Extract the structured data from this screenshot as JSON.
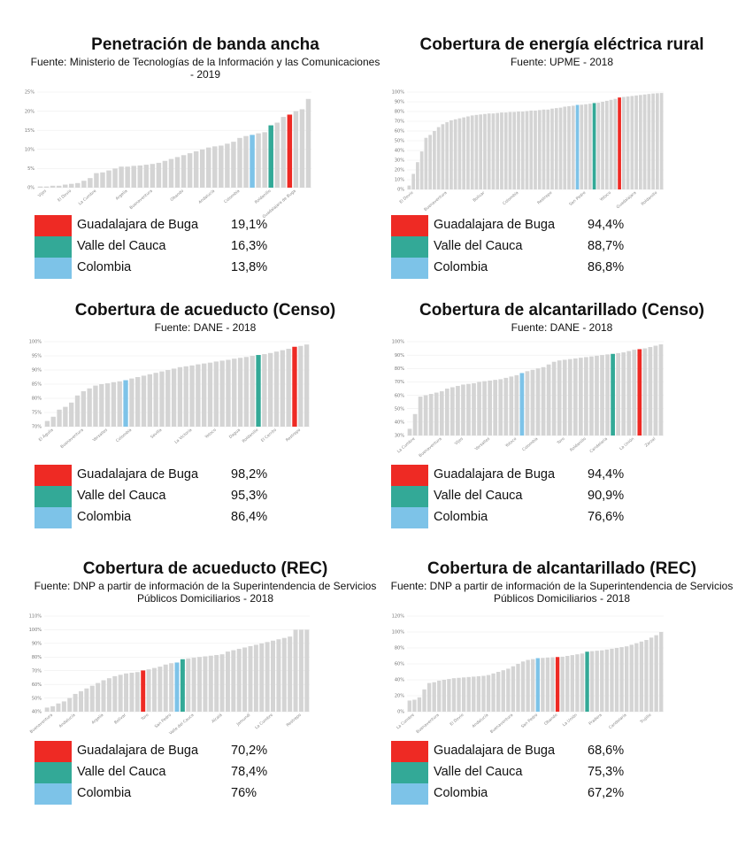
{
  "colors": {
    "buga": "#ee2a24",
    "valle": "#33a997",
    "colombia": "#7dc3e8",
    "bar": "#d4d4d4",
    "grid": "#eeeeee"
  },
  "chart_data": [
    {
      "type": "bar",
      "title": "Penetración de banda ancha",
      "source": "Fuente: Ministerio de Tecnologías de la Información y las Comunicaciones - 2019",
      "ylim": [
        0,
        25
      ],
      "yticks": [
        "0%",
        "5%",
        "10%",
        "15%",
        "20%",
        "25%"
      ],
      "values": [
        0.3,
        0.3,
        0.5,
        0.5,
        0.8,
        1,
        1.2,
        1.8,
        2.5,
        3.8,
        4,
        4.5,
        5,
        5.5,
        5.5,
        5.7,
        5.8,
        6,
        6.2,
        6.5,
        7,
        7.5,
        8,
        8.5,
        9,
        9.5,
        10,
        10.5,
        10.8,
        11,
        11.5,
        12,
        13,
        13.5,
        13.8,
        14.2,
        14.5,
        16.3,
        17,
        18.5,
        19.1,
        20,
        20.5,
        23.2
      ],
      "highlight": {
        "buga": 40,
        "valle": 37,
        "colombia": 34
      },
      "xlabels": [
        {
          "i": 1,
          "t": "Vijes"
        },
        {
          "i": 5,
          "t": "El Dovio"
        },
        {
          "i": 9,
          "t": "La Cumbre"
        },
        {
          "i": 14,
          "t": "Argelia"
        },
        {
          "i": 18,
          "t": "Buenaventura"
        },
        {
          "i": 23,
          "t": "Obando"
        },
        {
          "i": 28,
          "t": "Andalucía"
        },
        {
          "i": 32,
          "t": "Colombia"
        },
        {
          "i": 37,
          "t": "Roldanillo"
        },
        {
          "i": 41,
          "t": "Guadalajara de Buga"
        }
      ],
      "legend": [
        {
          "key": "buga",
          "label": "Guadalajara de Buga",
          "value": "19,1%"
        },
        {
          "key": "valle",
          "label": "Valle del Cauca",
          "value": "16,3%"
        },
        {
          "key": "colombia",
          "label": "Colombia",
          "value": "13,8%"
        }
      ]
    },
    {
      "type": "bar",
      "title": "Cobertura de energía eléctrica rural",
      "source": "Fuente: UPME - 2018",
      "ylim": [
        0,
        100
      ],
      "yticks": [
        "0%",
        "10%",
        "20%",
        "30%",
        "40%",
        "50%",
        "60%",
        "70%",
        "80%",
        "90%",
        "100%"
      ],
      "values": [
        4,
        16,
        28,
        39,
        53,
        56,
        60,
        64,
        67,
        69,
        71,
        72,
        73,
        74,
        75,
        76,
        76.5,
        77,
        77.5,
        78,
        78,
        78.5,
        79,
        79,
        79.5,
        79.5,
        80,
        80,
        80.5,
        81,
        81,
        81.5,
        82,
        82,
        83,
        83.5,
        84,
        85,
        85.5,
        86,
        86.8,
        87,
        87.5,
        88,
        88.7,
        89,
        90,
        91,
        92,
        93,
        94.4,
        95,
        95.5,
        96,
        96.5,
        97,
        97.5,
        98,
        98.5,
        98.8,
        99
      ],
      "highlight": {
        "buga": 50,
        "valle": 44,
        "colombia": 40
      },
      "xlabels": [
        {
          "i": 1,
          "t": "El Dovio"
        },
        {
          "i": 9,
          "t": "Buenaventura"
        },
        {
          "i": 18,
          "t": "Bolívar"
        },
        {
          "i": 26,
          "t": "Colombia"
        },
        {
          "i": 34,
          "t": "Restrepo"
        },
        {
          "i": 42,
          "t": "San Pedro"
        },
        {
          "i": 48,
          "t": "Yotoco"
        },
        {
          "i": 54,
          "t": "Guadalajara"
        },
        {
          "i": 59,
          "t": "Roldanillo"
        }
      ],
      "legend": [
        {
          "key": "buga",
          "label": "Guadalajara de Buga",
          "value": "94,4%"
        },
        {
          "key": "valle",
          "label": "Valle del Cauca",
          "value": "88,7%"
        },
        {
          "key": "colombia",
          "label": "Colombia",
          "value": "86,8%"
        }
      ]
    },
    {
      "type": "bar",
      "title": "Cobertura de acueducto (Censo)",
      "source": "Fuente: DANE - 2018",
      "ylim": [
        70,
        100
      ],
      "yticks": [
        "70%",
        "75%",
        "80%",
        "85%",
        "90%",
        "95%",
        "100%"
      ],
      "values": [
        72,
        73.5,
        76,
        77,
        78.5,
        81,
        82.5,
        83.5,
        84.5,
        85,
        85.3,
        85.7,
        86,
        86.4,
        87,
        87.5,
        88,
        88.5,
        89,
        89.5,
        90,
        90.5,
        91,
        91.3,
        91.6,
        92,
        92.3,
        92.6,
        93,
        93.3,
        93.6,
        94,
        94.3,
        94.6,
        95,
        95.3,
        95.6,
        96,
        96.5,
        97,
        97.5,
        98.2,
        98.5,
        99
      ],
      "highlight": {
        "buga": 41,
        "valle": 35,
        "colombia": 13
      },
      "xlabels": [
        {
          "i": 1,
          "t": "El Águila"
        },
        {
          "i": 6,
          "t": "Buenaventura"
        },
        {
          "i": 10,
          "t": "Versalles"
        },
        {
          "i": 14,
          "t": "Colombia"
        },
        {
          "i": 19,
          "t": "Sevilla"
        },
        {
          "i": 24,
          "t": "La Victoria"
        },
        {
          "i": 28,
          "t": "Yotoco"
        },
        {
          "i": 32,
          "t": "Dagua"
        },
        {
          "i": 35,
          "t": "Roldanillo"
        },
        {
          "i": 38,
          "t": "El Cerrito"
        },
        {
          "i": 42,
          "t": "Restrepo"
        }
      ],
      "legend": [
        {
          "key": "buga",
          "label": "Guadalajara de Buga",
          "value": "98,2%"
        },
        {
          "key": "valle",
          "label": "Valle del Cauca",
          "value": "95,3%"
        },
        {
          "key": "colombia",
          "label": "Colombia",
          "value": "86,4%"
        }
      ]
    },
    {
      "type": "bar",
      "title": "Cobertura de alcantarillado (Censo)",
      "source": "Fuente: DANE - 2018",
      "ylim": [
        30,
        100
      ],
      "yticks": [
        "30%",
        "40%",
        "50%",
        "60%",
        "70%",
        "80%",
        "90%",
        "100%"
      ],
      "values": [
        35,
        46,
        59,
        60,
        61,
        62,
        63,
        65,
        66,
        67,
        68,
        68.5,
        69,
        70,
        70.5,
        71,
        71.5,
        72,
        73,
        74,
        75,
        76.6,
        78,
        79,
        80,
        81,
        83,
        85,
        86,
        86.5,
        87,
        87.5,
        88,
        88.5,
        89,
        89.5,
        90,
        90.5,
        90.9,
        91.5,
        92,
        93,
        94,
        94.4,
        95,
        96,
        97,
        98
      ],
      "highlight": {
        "buga": 43,
        "valle": 38,
        "colombia": 21
      },
      "xlabels": [
        {
          "i": 1,
          "t": "La Cumbre"
        },
        {
          "i": 6,
          "t": "Buenaventura"
        },
        {
          "i": 10,
          "t": "Vijes"
        },
        {
          "i": 15,
          "t": "Versalles"
        },
        {
          "i": 20,
          "t": "Yotoco"
        },
        {
          "i": 24,
          "t": "Colombia"
        },
        {
          "i": 29,
          "t": "Toro"
        },
        {
          "i": 33,
          "t": "Roldanillo"
        },
        {
          "i": 37,
          "t": "Candelaria"
        },
        {
          "i": 42,
          "t": "La Unión"
        },
        {
          "i": 46,
          "t": "Zarzal"
        }
      ],
      "legend": [
        {
          "key": "buga",
          "label": "Guadalajara de Buga",
          "value": "94,4%"
        },
        {
          "key": "valle",
          "label": "Valle del Cauca",
          "value": "90,9%"
        },
        {
          "key": "colombia",
          "label": "Colombia",
          "value": "76,6%"
        }
      ]
    },
    {
      "type": "bar",
      "title": "Cobertura de acueducto (REC)",
      "source": "Fuente: DNP a partir de información de la Superintendencia de Servicios Públicos Domiciliarios - 2018",
      "ylim": [
        40,
        110
      ],
      "yticks": [
        "40%",
        "50%",
        "60%",
        "70%",
        "80%",
        "90%",
        "100%",
        "110%"
      ],
      "values": [
        43,
        44,
        46,
        47.5,
        50,
        53,
        55,
        57,
        59,
        61,
        63,
        64.5,
        66,
        67,
        68,
        68.5,
        69,
        70.2,
        71,
        72,
        73,
        74.5,
        75.5,
        76,
        78.4,
        79,
        79.5,
        80,
        80.5,
        81,
        81.5,
        82,
        84,
        85,
        86,
        87,
        88,
        89,
        90,
        91,
        92,
        93,
        94,
        95,
        100,
        100,
        100
      ],
      "highlight": {
        "buga": 17,
        "valle": 24,
        "colombia": 23
      },
      "xlabels": [
        {
          "i": 1,
          "t": "Buenaventura"
        },
        {
          "i": 5,
          "t": "Andalucía"
        },
        {
          "i": 10,
          "t": "Argelia"
        },
        {
          "i": 14,
          "t": "Bolívar"
        },
        {
          "i": 18,
          "t": "Toro"
        },
        {
          "i": 22,
          "t": "San Pedro"
        },
        {
          "i": 26,
          "t": "Valle del Cauca"
        },
        {
          "i": 31,
          "t": "Alcalá"
        },
        {
          "i": 36,
          "t": "Jamundí"
        },
        {
          "i": 40,
          "t": "La Cumbre"
        },
        {
          "i": 45,
          "t": "Restrepo"
        }
      ],
      "legend": [
        {
          "key": "buga",
          "label": "Guadalajara de Buga",
          "value": "70,2%"
        },
        {
          "key": "valle",
          "label": "Valle del Cauca",
          "value": "78,4%"
        },
        {
          "key": "colombia",
          "label": "Colombia",
          "value": "76%"
        }
      ]
    },
    {
      "type": "bar",
      "title": "Cobertura de alcantarillado (REC)",
      "source": "Fuente: DNP a partir de información de la Superintendencia de Servicios Públicos Domiciliarios - 2018",
      "ylim": [
        0,
        120
      ],
      "yticks": [
        "0%",
        "20%",
        "40%",
        "60%",
        "80%",
        "100%",
        "120%"
      ],
      "values": [
        14,
        15,
        18,
        28,
        36,
        37,
        39,
        40,
        41,
        42,
        42.5,
        43,
        43.5,
        44,
        44.5,
        45,
        46,
        48,
        50,
        52,
        54,
        57,
        60,
        63,
        65,
        66,
        67.2,
        67.5,
        68,
        68.3,
        68.6,
        69,
        70,
        71,
        72,
        73,
        75.3,
        76,
        76.5,
        77,
        78,
        79,
        80,
        81,
        82,
        84,
        86,
        88,
        90,
        93,
        96,
        100
      ],
      "highlight": {
        "buga": 30,
        "valle": 36,
        "colombia": 26
      },
      "xlabels": [
        {
          "i": 1,
          "t": "La Cumbre"
        },
        {
          "i": 6,
          "t": "Buenaventura"
        },
        {
          "i": 11,
          "t": "El Dovio"
        },
        {
          "i": 16,
          "t": "Andalucía"
        },
        {
          "i": 21,
          "t": "Buenaventura"
        },
        {
          "i": 26,
          "t": "San Pedro"
        },
        {
          "i": 30,
          "t": "Obando"
        },
        {
          "i": 34,
          "t": "La Unión"
        },
        {
          "i": 39,
          "t": "Pradera"
        },
        {
          "i": 44,
          "t": "Candelaria"
        },
        {
          "i": 49,
          "t": "Trujillo"
        }
      ],
      "legend": [
        {
          "key": "buga",
          "label": "Guadalajara de Buga",
          "value": "68,6%"
        },
        {
          "key": "valle",
          "label": "Valle del Cauca",
          "value": "75,3%"
        },
        {
          "key": "colombia",
          "label": "Colombia",
          "value": "67,2%"
        }
      ]
    }
  ]
}
